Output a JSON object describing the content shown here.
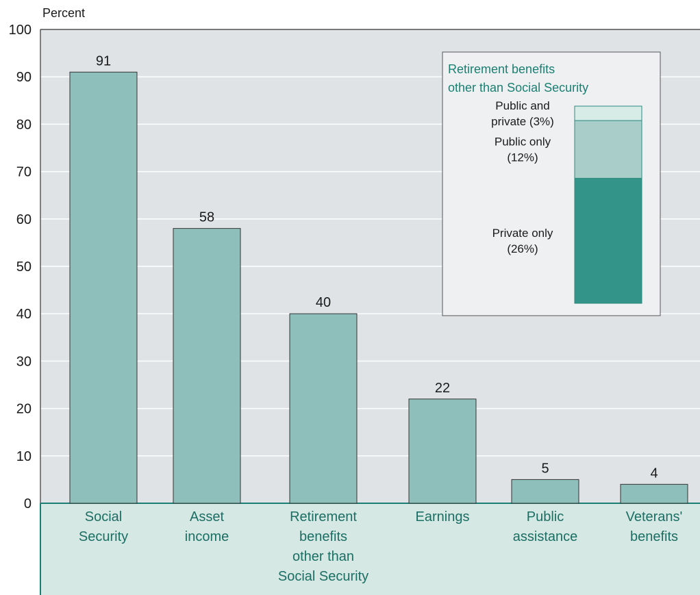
{
  "chart_data": {
    "type": "bar",
    "unit_label": "Percent",
    "ylim": [
      0,
      100
    ],
    "yticks": [
      "0",
      "10",
      "20",
      "30",
      "40",
      "50",
      "60",
      "70",
      "80",
      "90",
      "100"
    ],
    "categories": [
      [
        "Social",
        "Security"
      ],
      [
        "Asset",
        "income"
      ],
      [
        "Retirement",
        "benefits",
        "other than",
        "Social Security"
      ],
      [
        "Earnings"
      ],
      [
        "Public",
        "assistance"
      ],
      [
        "Veterans'",
        "benefits"
      ]
    ],
    "values": [
      91,
      58,
      40,
      22,
      5,
      4
    ],
    "value_labels": [
      "91",
      "58",
      "40",
      "22",
      "5",
      "4"
    ],
    "inset": {
      "title": [
        "Retirement benefits",
        "other than Social Security"
      ],
      "type": "stacked-bar",
      "segments": [
        {
          "name": [
            "Private only",
            "(26%)"
          ],
          "value": 26,
          "color": "#339489"
        },
        {
          "name": [
            "Public only",
            "(12%)"
          ],
          "value": 12,
          "color": "#a9cdc9"
        },
        {
          "name": [
            "Public and",
            "private (3%)"
          ],
          "value": 3,
          "color": "#d7ebe7"
        }
      ]
    },
    "colors": {
      "bar": "#8fbfba",
      "plot_background": "#dfe3e6",
      "category_band": "#d6e8e4",
      "accent": "#1a7f72"
    },
    "grid": true
  }
}
